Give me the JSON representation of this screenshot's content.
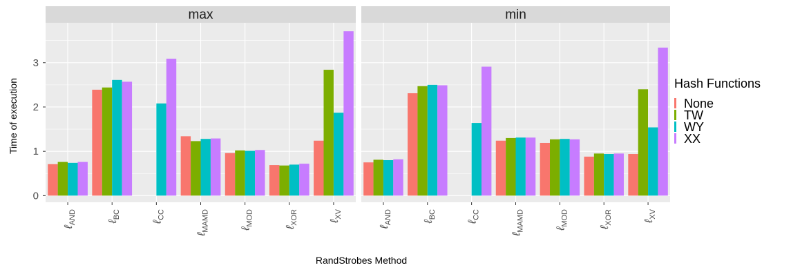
{
  "chart_data": {
    "type": "bar",
    "ylabel": "Time of execution",
    "xlabel": "RandStrobes Method",
    "ylim": [
      -0.15,
      3.9
    ],
    "yticks": [
      0,
      1,
      2,
      3
    ],
    "grid": true,
    "legend": {
      "title": "Hash Functions",
      "placement": "right",
      "entries": [
        "None",
        "TW",
        "WY",
        "XX"
      ]
    },
    "colors": [
      "#F8766D",
      "#7CAE00",
      "#00BFC4",
      "#C77CFF"
    ],
    "categories": [
      {
        "base": "ℓ",
        "sub": "AND"
      },
      {
        "base": "ℓ",
        "sub": "BC"
      },
      {
        "base": "ℓ",
        "sub": "CC"
      },
      {
        "base": "ℓ",
        "sub": "MAMD"
      },
      {
        "base": "ℓ",
        "sub": "MOD"
      },
      {
        "base": "ℓ",
        "sub": "XOR"
      },
      {
        "base": "ℓ",
        "sub": "XV"
      }
    ],
    "panels": [
      {
        "title": "max",
        "series": [
          {
            "name": "None",
            "values": [
              0.71,
              2.39,
              null,
              1.34,
              0.96,
              0.69,
              1.24
            ]
          },
          {
            "name": "TW",
            "values": [
              0.76,
              2.44,
              null,
              1.23,
              1.02,
              0.68,
              2.84
            ]
          },
          {
            "name": "WY",
            "values": [
              0.74,
              2.61,
              2.08,
              1.28,
              1.01,
              0.7,
              1.87
            ]
          },
          {
            "name": "XX",
            "values": [
              0.76,
              2.57,
              3.09,
              1.29,
              1.03,
              0.72,
              3.71
            ]
          }
        ]
      },
      {
        "title": "min",
        "series": [
          {
            "name": "None",
            "values": [
              0.75,
              2.31,
              null,
              1.24,
              1.19,
              0.88,
              0.94
            ]
          },
          {
            "name": "TW",
            "values": [
              0.81,
              2.47,
              null,
              1.3,
              1.27,
              0.95,
              2.4
            ]
          },
          {
            "name": "WY",
            "values": [
              0.8,
              2.5,
              1.64,
              1.31,
              1.28,
              0.94,
              1.54
            ]
          },
          {
            "name": "XX",
            "values": [
              0.82,
              2.49,
              2.91,
              1.31,
              1.27,
              0.95,
              3.34
            ]
          }
        ]
      }
    ]
  }
}
